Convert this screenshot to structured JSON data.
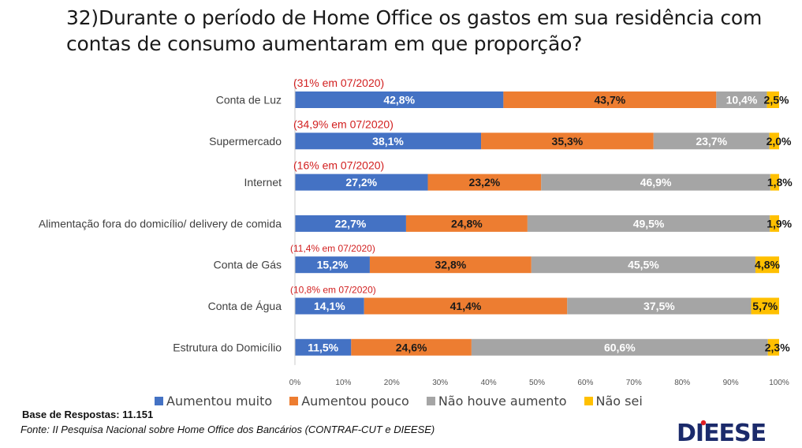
{
  "title": {
    "line1": "32)Durante o período de Home Office os gastos em sua residência com",
    "line2": "contas de consumo aumentaram em que proporção?"
  },
  "chart_data": {
    "type": "bar",
    "orientation": "horizontal",
    "stacked": "percent",
    "categories": [
      "Conta de Luz",
      "Supermercado",
      "Internet",
      "Alimentação fora do domicílio/ delivery de comida",
      "Conta de Gás",
      "Conta de Água",
      "Estrutura do Domicílio"
    ],
    "series": [
      {
        "name": "Aumentou muito",
        "color": "#4472c4",
        "label_color": "#ffffff",
        "values": [
          42.8,
          38.1,
          27.2,
          22.7,
          15.2,
          14.1,
          11.5
        ],
        "labels": [
          "42,8%",
          "38,1%",
          "27,2%",
          "22,7%",
          "15,2%",
          "14,1%",
          "11,5%"
        ]
      },
      {
        "name": "Aumentou pouco",
        "color": "#ed7d31",
        "label_color": "#1a1a1a",
        "values": [
          43.7,
          35.3,
          23.2,
          24.8,
          32.8,
          41.4,
          24.6
        ],
        "labels": [
          "43,7%",
          "35,3%",
          "23,2%",
          "24,8%",
          "32,8%",
          "41,4%",
          "24,6%"
        ]
      },
      {
        "name": "Não houve aumento",
        "color": "#a5a5a5",
        "label_color": "#ffffff",
        "values": [
          10.4,
          23.7,
          46.9,
          49.5,
          45.5,
          37.5,
          60.6
        ],
        "labels": [
          "10,4%",
          "23,7%",
          "46,9%",
          "49,5%",
          "45,5%",
          "37,5%",
          "60,6%"
        ]
      },
      {
        "name": "Não sei",
        "color": "#ffc000",
        "label_color": "#1a1a1a",
        "values": [
          2.5,
          2.0,
          1.8,
          1.9,
          4.8,
          5.7,
          2.3
        ],
        "labels": [
          "2,5%",
          "2,0%",
          "1,8%",
          "1,9%",
          "4,8%",
          "5,7%",
          "2,3%"
        ]
      }
    ],
    "annotations": [
      {
        "category": "Conta de Luz",
        "text": "(31% em 07/2020)",
        "size": "large"
      },
      {
        "category": "Supermercado",
        "text": "(34,9% em 07/2020)",
        "size": "large"
      },
      {
        "category": "Internet",
        "text": "(16% em 07/2020)",
        "size": "large"
      },
      {
        "category": "Conta de Gás",
        "text": "(11,4% em 07/2020)",
        "size": "small"
      },
      {
        "category": "Conta de Água",
        "text": "(10,8% em 07/2020)",
        "size": "small"
      }
    ],
    "xlim": [
      0,
      100
    ],
    "x_ticks": [
      "0%",
      "10%",
      "20%",
      "30%",
      "40%",
      "50%",
      "60%",
      "70%",
      "80%",
      "90%",
      "100%"
    ],
    "legend_position": "bottom",
    "grid": false
  },
  "footer": {
    "base": "Base de Respostas: 11.151",
    "source": "Fonte: II Pesquisa Nacional sobre Home Office dos Bancários (CONTRAF-CUT e DIEESE)"
  },
  "logo": {
    "text": "DIEESE",
    "color": "#1b2a6b",
    "accent": "#e31e24"
  }
}
